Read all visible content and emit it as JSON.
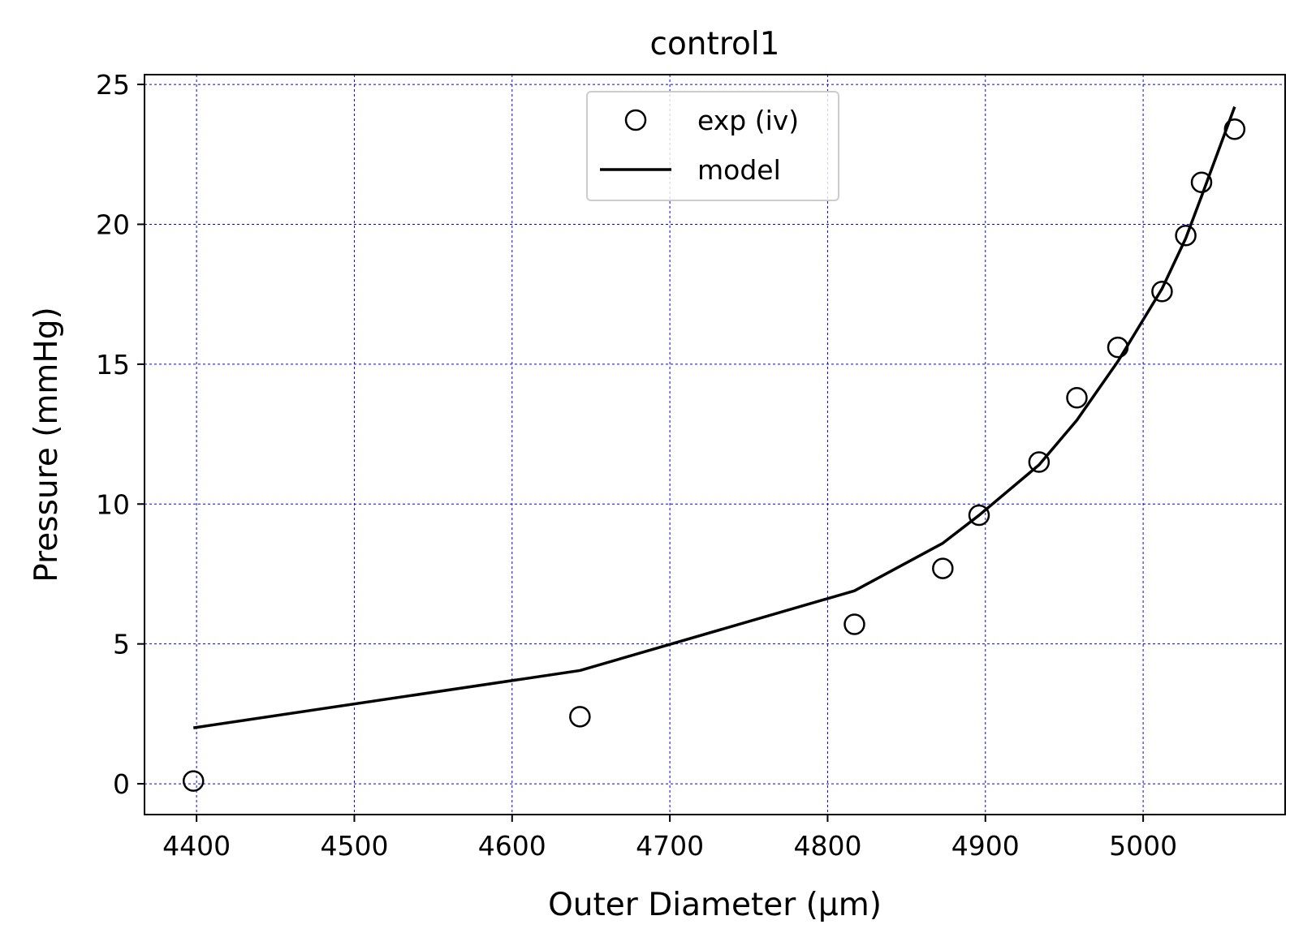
{
  "chart_data": {
    "type": "scatter",
    "title": "control1",
    "xlabel": "Outer Diameter (μm)",
    "ylabel": "Pressure (mmHg)",
    "xlim": [
      4367,
      5090
    ],
    "ylim": [
      -1.1,
      25.35
    ],
    "xticks": [
      4400,
      4500,
      4600,
      4700,
      4800,
      4900,
      5000
    ],
    "yticks": [
      0,
      5,
      10,
      15,
      20,
      25
    ],
    "grid": true,
    "legend_placement": "upper center",
    "series": [
      {
        "name": "exp (iv)",
        "marker": "open-circle",
        "x": [
          4398,
          4643,
          4817,
          4873,
          4896,
          4934,
          4958,
          4984,
          5012,
          5027,
          5037,
          5058
        ],
        "y": [
          0.1,
          2.4,
          5.7,
          7.7,
          9.6,
          11.5,
          13.8,
          15.6,
          17.6,
          19.6,
          21.5,
          23.4
        ]
      },
      {
        "name": "model",
        "marker": "line",
        "x": [
          4398,
          4643,
          4817,
          4873,
          4896,
          4934,
          4958,
          4984,
          5012,
          5027,
          5037,
          5058
        ],
        "y": [
          2.0,
          4.05,
          6.9,
          8.6,
          9.6,
          11.4,
          13.0,
          15.1,
          17.7,
          19.5,
          21.0,
          24.2
        ]
      }
    ]
  },
  "colors": {
    "line": "#000000",
    "grid": "#0000ff",
    "axes": "#000000",
    "background": "#ffffff"
  }
}
